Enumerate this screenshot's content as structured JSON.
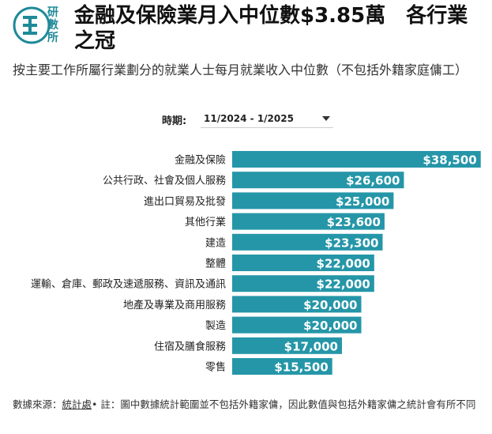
{
  "header": {
    "logo_text": "研數所",
    "title": "金融及保險業月入中位數$3.85萬　各行業之冠",
    "subtitle": "按主要工作所屬行業劃分的就業人士每月就業收入中位數（不包括外籍家庭傭工）"
  },
  "filter": {
    "label": "時期:",
    "selected": "11/2024 - 1/2025"
  },
  "colors": {
    "bar": "#2596a8",
    "logo": "#1f8a99"
  },
  "chart_data": {
    "type": "bar",
    "orientation": "horizontal",
    "categories": [
      "金融及保險",
      "公共行政、社會及個人服務",
      "進出口貿易及批發",
      "其他行業",
      "建造",
      "整體",
      "運輸、倉庫、郵政及速遞服務、資訊及通訊",
      "地產及專業及商用服務",
      "製造",
      "住宿及膳食服務",
      "零售"
    ],
    "values": [
      38500,
      26600,
      25000,
      23600,
      23300,
      22000,
      22000,
      20000,
      20000,
      17000,
      15500
    ],
    "labels": [
      "$38,500",
      "$26,600",
      "$25,000",
      "$23,600",
      "$23,300",
      "$22,000",
      "$22,000",
      "$20,000",
      "$20,000",
      "$17,000",
      "$15,500"
    ],
    "xlim": [
      0,
      40000
    ],
    "grid": false
  },
  "source": {
    "prefix": "數據來源：",
    "link": "統計處",
    "note": "• 註：圖中數據統計範圍並不包括外籍家傭，因此數值與包括外籍家傭之統計會有所不同"
  }
}
